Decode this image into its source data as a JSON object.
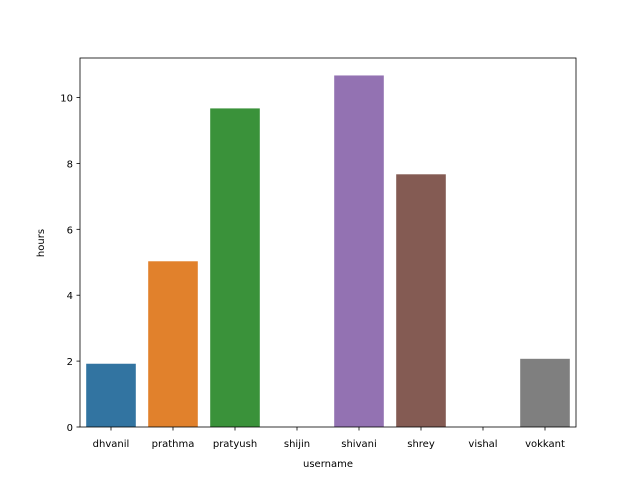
{
  "chart_data": {
    "type": "bar",
    "title": "",
    "xlabel": "username",
    "ylabel": "hours",
    "categories": [
      "dhvanil",
      "prathma",
      "pratyush",
      "shijin",
      "shivani",
      "shrey",
      "vishal",
      "vokkant"
    ],
    "values": [
      1.92,
      5.03,
      9.67,
      0,
      10.67,
      7.67,
      0,
      2.07
    ],
    "colors": [
      "#3274a1",
      "#e1812c",
      "#3a923a",
      "#c03d3e",
      "#9372b2",
      "#845b53",
      "#d684bd",
      "#7f7f7f"
    ],
    "yticks": [
      0,
      2,
      4,
      6,
      8,
      10
    ],
    "ylim": [
      0,
      11.2
    ],
    "grid": false,
    "legend": "none"
  }
}
